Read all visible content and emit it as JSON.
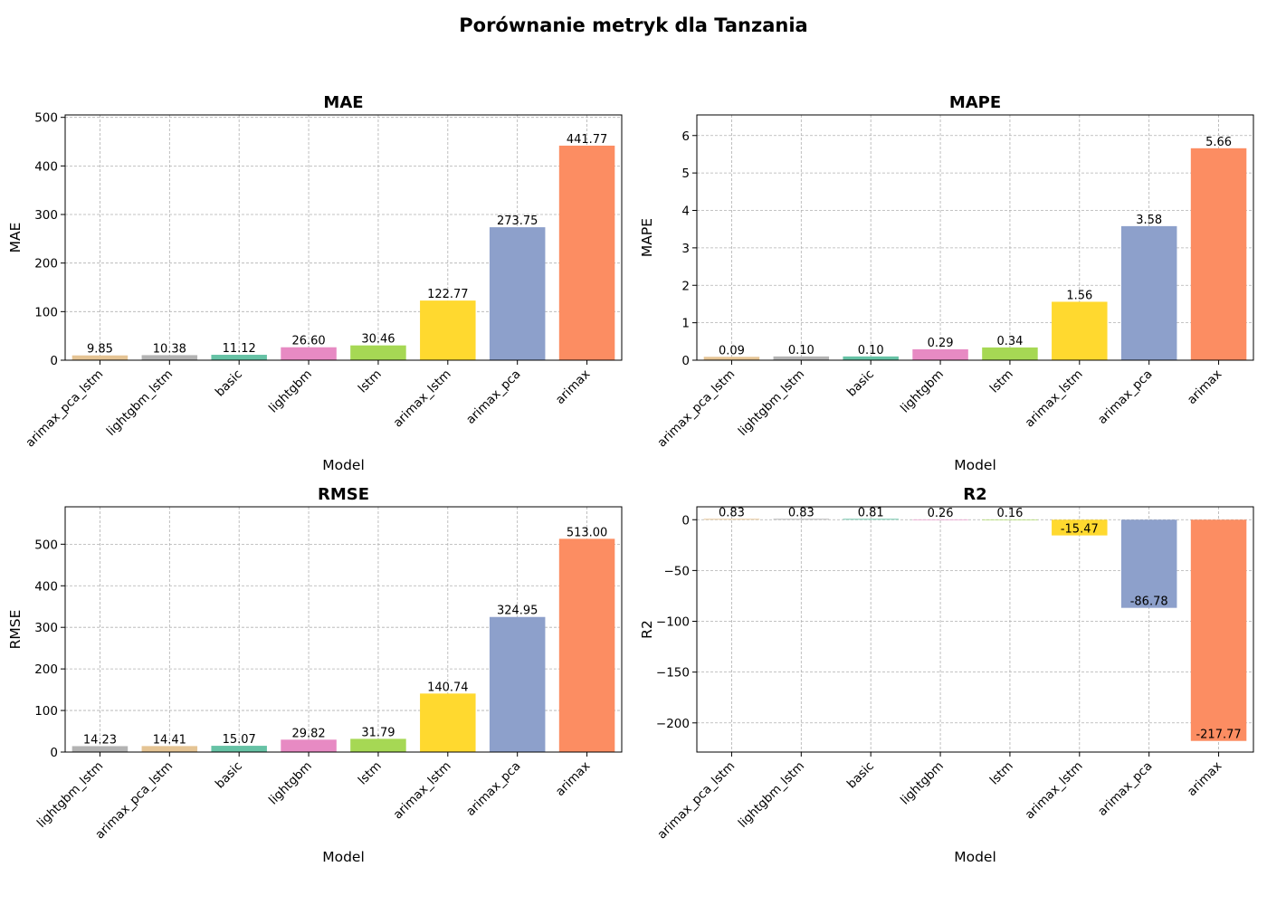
{
  "figure": {
    "title": "Porównanie metryk dla Tanzania"
  },
  "chart_data": [
    {
      "type": "bar",
      "title": "MAE",
      "xlabel": "Model",
      "ylabel": "MAE",
      "ylim": [
        0,
        505
      ],
      "yticks": [
        0,
        100,
        200,
        300,
        400,
        500
      ],
      "grid": true,
      "categories": [
        "arimax_pca_lstm",
        "lightgbm_lstm",
        "basic",
        "lightgbm",
        "lstm",
        "arimax_lstm",
        "arimax_pca",
        "arimax"
      ],
      "values": [
        9.85,
        10.38,
        11.12,
        26.6,
        30.46,
        122.77,
        273.75,
        441.77
      ],
      "labels": [
        "9.85",
        "10.38",
        "11.12",
        "26.60",
        "30.46",
        "122.77",
        "273.75",
        "441.77"
      ]
    },
    {
      "type": "bar",
      "title": "MAPE",
      "xlabel": "Model",
      "ylabel": "MAPE",
      "ylim": [
        0,
        6.55
      ],
      "yticks": [
        0,
        1,
        2,
        3,
        4,
        5,
        6
      ],
      "grid": true,
      "categories": [
        "arimax_pca_lstm",
        "lightgbm_lstm",
        "basic",
        "lightgbm",
        "lstm",
        "arimax_lstm",
        "arimax_pca",
        "arimax"
      ],
      "values": [
        0.09,
        0.1,
        0.1,
        0.29,
        0.34,
        1.56,
        3.58,
        5.66
      ],
      "labels": [
        "0.09",
        "0.10",
        "0.10",
        "0.29",
        "0.34",
        "1.56",
        "3.58",
        "5.66"
      ]
    },
    {
      "type": "bar",
      "title": "RMSE",
      "xlabel": "Model",
      "ylabel": "RMSE",
      "ylim": [
        0,
        590
      ],
      "yticks": [
        0,
        100,
        200,
        300,
        400,
        500
      ],
      "grid": true,
      "categories": [
        "lightgbm_lstm",
        "arimax_pca_lstm",
        "basic",
        "lightgbm",
        "lstm",
        "arimax_lstm",
        "arimax_pca",
        "arimax"
      ],
      "values": [
        14.23,
        14.41,
        15.07,
        29.82,
        31.79,
        140.74,
        324.95,
        513.0
      ],
      "labels": [
        "14.23",
        "14.41",
        "15.07",
        "29.82",
        "31.79",
        "140.74",
        "324.95",
        "513.00"
      ]
    },
    {
      "type": "bar",
      "title": "R2",
      "xlabel": "Model",
      "ylabel": "R2",
      "ylim": [
        -228.7,
        12.7
      ],
      "yticks": [
        0,
        -50,
        -100,
        -150,
        -200
      ],
      "ytick_labels": [
        "0",
        "−50",
        "−100",
        "−150",
        "−200"
      ],
      "grid": true,
      "categories": [
        "arimax_pca_lstm",
        "lightgbm_lstm",
        "basic",
        "lightgbm",
        "lstm",
        "arimax_lstm",
        "arimax_pca",
        "arimax"
      ],
      "values": [
        0.83,
        0.83,
        0.81,
        0.26,
        0.16,
        -15.47,
        -86.78,
        -217.77
      ],
      "labels": [
        "0.83",
        "0.83",
        "0.81",
        "0.26",
        "0.16",
        "-15.47",
        "-86.78",
        "-217.77"
      ]
    }
  ],
  "colors": {
    "arimax_pca_lstm": "#e5c494",
    "lightgbm_lstm": "#b3b3b3",
    "basic": "#66c2a5",
    "lightgbm": "#e78ac3",
    "lstm": "#a6d854",
    "arimax_lstm": "#ffd92f",
    "arimax_pca": "#8da0cb",
    "arimax": "#fc8d62"
  }
}
